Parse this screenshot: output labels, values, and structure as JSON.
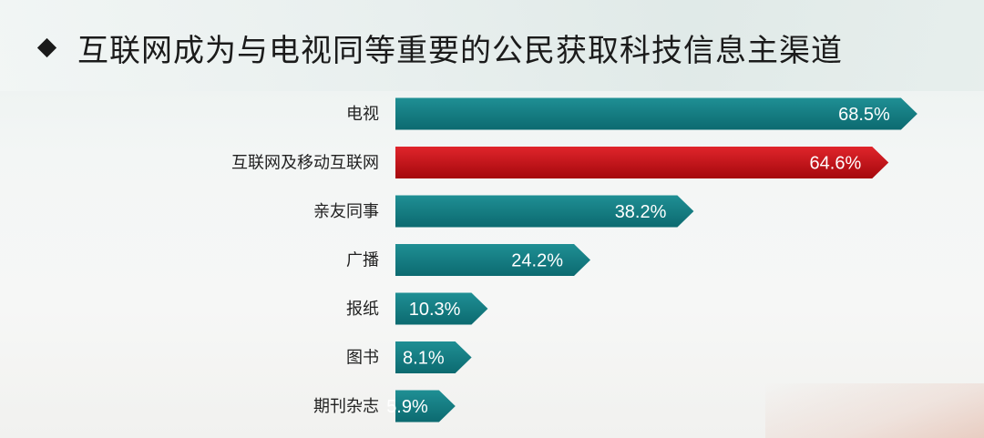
{
  "title": "互联网成为与电视同等重要的公民获取科技信息主渠道",
  "icons": {
    "bullet": "diamond-bullet-icon"
  },
  "colors": {
    "teal_top": "#1f8f94",
    "teal_bottom": "#0c6a70",
    "red_top": "#e0252b",
    "red_bottom": "#a5080d"
  },
  "chart_data": {
    "type": "bar",
    "orientation": "horizontal",
    "categories": [
      "电视",
      "互联网及移动互联网",
      "亲友同事",
      "广播",
      "报纸",
      "图书",
      "期刊杂志"
    ],
    "values": [
      68.5,
      64.6,
      38.2,
      24.2,
      10.3,
      8.1,
      5.9
    ],
    "value_labels": [
      "68.5%",
      "64.6%",
      "38.2%",
      "24.2%",
      "10.3%",
      "8.1%",
      "5.9%"
    ],
    "highlight_index": 1,
    "xlim": [
      0,
      70
    ],
    "grid": false,
    "legend": "none"
  }
}
